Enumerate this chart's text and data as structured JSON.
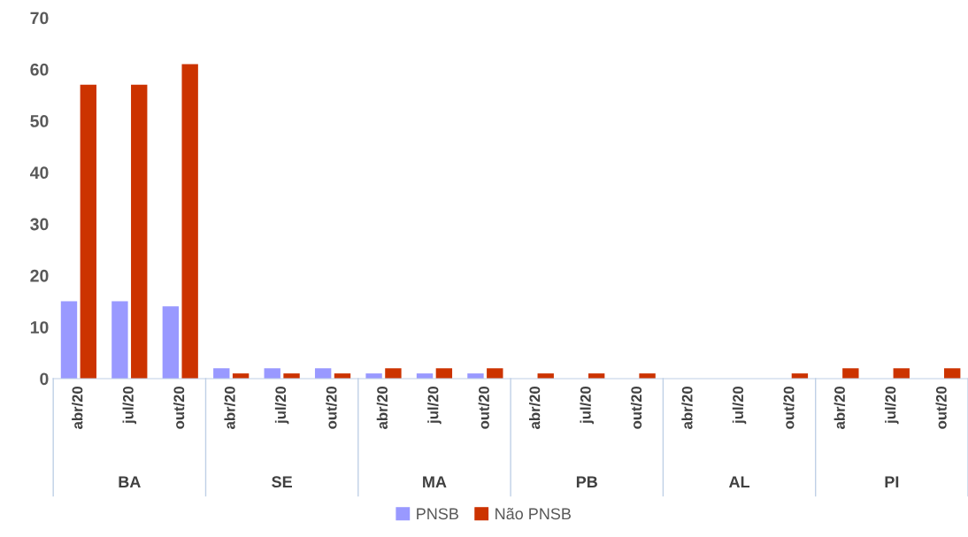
{
  "chart_data": {
    "type": "bar",
    "categories": [
      "abr/20",
      "jul/20",
      "out/20",
      "abr/20",
      "jul/20",
      "out/20",
      "abr/20",
      "jul/20",
      "out/20",
      "abr/20",
      "jul/20",
      "out/20",
      "abr/20",
      "jul/20",
      "out/20",
      "abr/20",
      "jul/20",
      "out/20"
    ],
    "series": [
      {
        "name": "PNSB",
        "color": "#9999ff",
        "values": [
          15,
          15,
          14,
          2,
          2,
          2,
          1,
          1,
          1,
          0,
          0,
          0,
          0,
          0,
          0,
          0,
          0,
          0
        ]
      },
      {
        "name": "Não PNSB",
        "color": "#cc3300",
        "values": [
          57,
          57,
          61,
          1,
          1,
          1,
          2,
          2,
          2,
          1,
          1,
          1,
          0,
          0,
          1,
          2,
          2,
          2
        ]
      }
    ],
    "annotations": [
      "BA",
      "SE",
      "MA",
      "PB",
      "AL",
      "PI"
    ],
    "ylim": [
      0,
      70
    ],
    "yticks": [
      0,
      10,
      20,
      30,
      40,
      50,
      60,
      70
    ],
    "grid": false,
    "legend": "bottom"
  }
}
